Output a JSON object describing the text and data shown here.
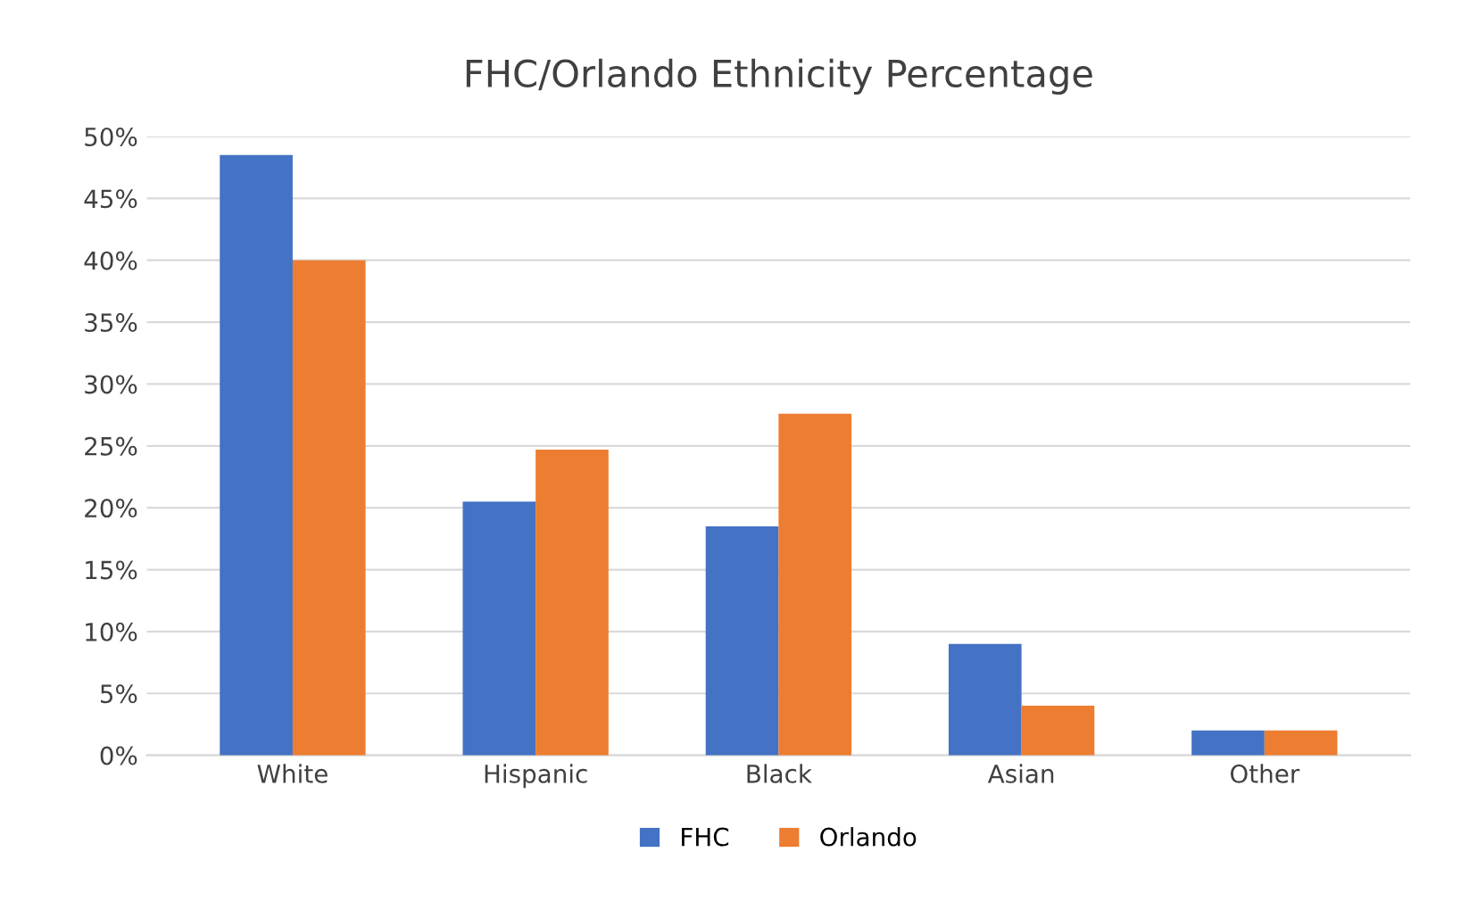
{
  "chart_data": {
    "type": "bar",
    "title": "FHC/Orlando Ethnicity Percentage",
    "categories": [
      "White",
      "Hispanic",
      "Black",
      "Asian",
      "Other"
    ],
    "series": [
      {
        "name": "FHC",
        "color": "#4472c4",
        "values": [
          48.5,
          20.5,
          18.5,
          9,
          2
        ]
      },
      {
        "name": "Orlando",
        "color": "#ed7d31",
        "values": [
          40,
          24.7,
          27.6,
          4,
          2
        ]
      }
    ],
    "ylim": [
      0,
      50
    ],
    "yticks": [
      {
        "value": 0,
        "label": "0%"
      },
      {
        "value": 5,
        "label": "5%"
      },
      {
        "value": 10,
        "label": "10%"
      },
      {
        "value": 15,
        "label": "15%"
      },
      {
        "value": 20,
        "label": "20%"
      },
      {
        "value": 25,
        "label": "25%"
      },
      {
        "value": 30,
        "label": "30%"
      },
      {
        "value": 35,
        "label": "35%"
      },
      {
        "value": 40,
        "label": "40%"
      },
      {
        "value": 45,
        "label": "45%"
      },
      {
        "value": 50,
        "label": "50%"
      }
    ],
    "grid": "y",
    "legend": "bottom"
  }
}
